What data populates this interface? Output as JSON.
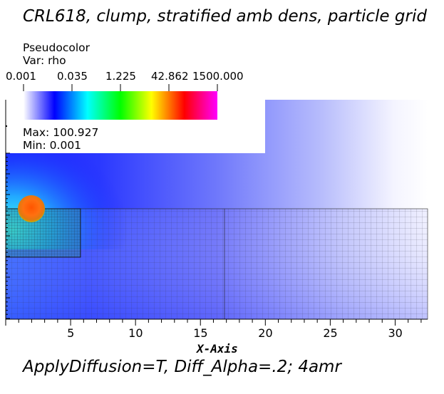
{
  "title": "CRL618, clump, stratified amb dens, particle grid",
  "footer": "ApplyDiffusion=T, Diff_Alpha=.2; 4amr",
  "legend": {
    "type_label": "Pseudocolor",
    "var_label": "Var: rho",
    "ticks": [
      "0.001",
      "0.035",
      "1.225",
      "42.862",
      "1500.000"
    ],
    "max_label": "Max:",
    "max_value": "100.927",
    "min_label": "Min:",
    "min_value": "0.001",
    "colors": [
      "#ffffff",
      "#0000ff",
      "#00ffff",
      "#00ff00",
      "#ffff00",
      "#ff0000",
      "#ff00ff"
    ]
  },
  "chart_data": {
    "type": "heatmap",
    "title": "CRL618, clump, stratified amb dens, particle grid",
    "xlabel": "X-Axis",
    "ylabel": "",
    "xlim": [
      0,
      32.5
    ],
    "x_ticks": [
      5,
      10,
      15,
      20,
      25,
      30
    ],
    "x_tick_labels": [
      "5",
      "10",
      "15",
      "20",
      "25",
      "30"
    ],
    "variable": "rho",
    "colormap_ticks": [
      0.001,
      0.035,
      1.225,
      42.862,
      1500.0
    ],
    "colorscale": "log",
    "max": 100.927,
    "min": 0.001,
    "clump_center_x": 1.6,
    "legend_position": "top-left"
  }
}
